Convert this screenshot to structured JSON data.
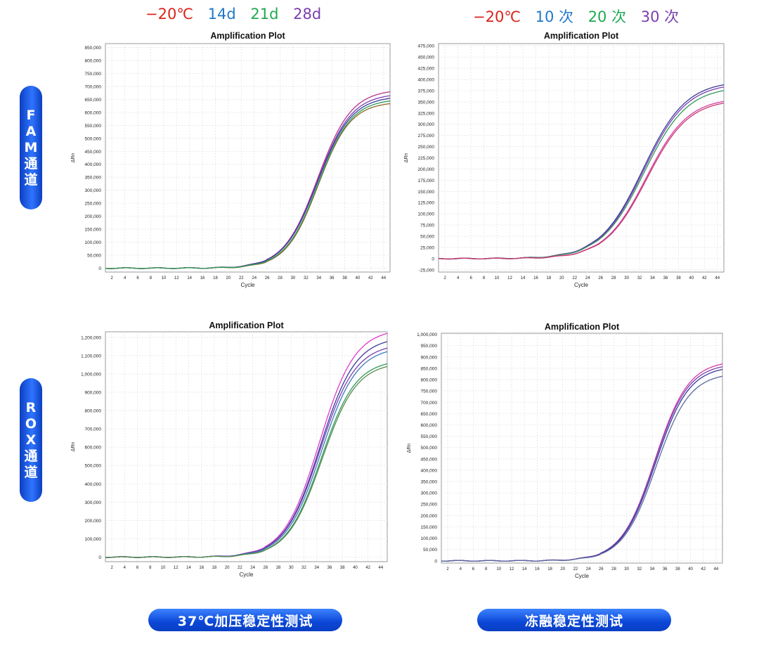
{
  "legend_left": [
    {
      "label": "−20℃",
      "color": "#d9241c"
    },
    {
      "label": "14d",
      "color": "#1f7ac9"
    },
    {
      "label": "21d",
      "color": "#1faa52"
    },
    {
      "label": "28d",
      "color": "#7a3fb0"
    }
  ],
  "legend_right": [
    {
      "label": "−20℃",
      "color": "#d9241c"
    },
    {
      "label": "10 次",
      "color": "#1f7ac9"
    },
    {
      "label": "20 次",
      "color": "#1faa52"
    },
    {
      "label": "30 次",
      "color": "#7a3fb0"
    }
  ],
  "side_labels": {
    "fam": [
      "F",
      "A",
      "M",
      "通",
      "道"
    ],
    "rox": [
      "R",
      "O",
      "X",
      "通",
      "道"
    ]
  },
  "bottom_labels": {
    "left": "37℃加压稳定性测试",
    "right": "冻融稳定性测试"
  },
  "chart_data": [
    {
      "type": "line",
      "title": "Amplification Plot",
      "xlabel": "Cycle",
      "ylabel": "ΔRn",
      "x_ticks": [
        2,
        4,
        6,
        8,
        10,
        12,
        14,
        16,
        18,
        20,
        22,
        24,
        26,
        28,
        30,
        32,
        34,
        36,
        38,
        40,
        42,
        44
      ],
      "xlim": [
        1,
        45
      ],
      "ylim": [
        -15000,
        865000
      ],
      "y_ticks": [
        0,
        50000,
        100000,
        150000,
        200000,
        250000,
        300000,
        350000,
        400000,
        450000,
        500000,
        550000,
        600000,
        650000,
        700000,
        750000,
        800000,
        850000
      ],
      "series": [
        {
          "color": "#b8338a",
          "curve": {
            "top": 675000,
            "mid": 33.8,
            "slope": 0.38
          },
          "plateau": 780000
        },
        {
          "color": "#7a3fb0",
          "curve": {
            "top": 660000,
            "mid": 33.8,
            "slope": 0.38
          },
          "plateau": 760000
        },
        {
          "color": "#3a3a9a",
          "curve": {
            "top": 650000,
            "mid": 33.8,
            "slope": 0.38
          },
          "plateau": 745000
        },
        {
          "color": "#8a6a2a",
          "curve": {
            "top": 630000,
            "mid": 33.9,
            "slope": 0.4
          },
          "plateau": 705000
        },
        {
          "color": "#2e9a58",
          "curve": {
            "top": 640000,
            "mid": 33.9,
            "slope": 0.39
          },
          "plateau": 720000
        }
      ]
    },
    {
      "type": "line",
      "title": "Amplification Plot",
      "xlabel": "Cycle",
      "ylabel": "ΔRn",
      "x_ticks": [
        2,
        4,
        6,
        8,
        10,
        12,
        14,
        16,
        18,
        20,
        22,
        24,
        26,
        28,
        30,
        32,
        34,
        36,
        38,
        40,
        42,
        44
      ],
      "xlim": [
        1,
        45
      ],
      "ylim": [
        -30000,
        480000
      ],
      "y_ticks": [
        -25000,
        0,
        25000,
        50000,
        75000,
        100000,
        125000,
        150000,
        175000,
        200000,
        225000,
        250000,
        275000,
        300000,
        325000,
        350000,
        375000,
        400000,
        425000,
        450000,
        475000
      ],
      "series": [
        {
          "color": "#3a3a9a",
          "curve": {
            "top": 385000,
            "mid": 32.5,
            "slope": 0.3
          },
          "plateau": 450000
        },
        {
          "color": "#7a3fb0",
          "curve": {
            "top": 380000,
            "mid": 32.6,
            "slope": 0.3
          },
          "plateau": 445000
        },
        {
          "color": "#2e9a58",
          "curve": {
            "top": 372000,
            "mid": 32.7,
            "slope": 0.3
          },
          "plateau": 435000
        },
        {
          "color": "#d93aa6",
          "curve": {
            "top": 348000,
            "mid": 33.0,
            "slope": 0.31
          },
          "plateau": 405000
        },
        {
          "color": "#c23b6a",
          "curve": {
            "top": 344000,
            "mid": 33.1,
            "slope": 0.31
          },
          "plateau": 400000
        }
      ]
    },
    {
      "type": "line",
      "title": "Amplification Plot",
      "xlabel": "Cycle",
      "ylabel": "ΔRn",
      "x_ticks": [
        2,
        4,
        6,
        8,
        10,
        12,
        14,
        16,
        18,
        20,
        22,
        24,
        26,
        28,
        30,
        32,
        34,
        36,
        38,
        40,
        42,
        44
      ],
      "xlim": [
        1,
        45
      ],
      "ylim": [
        -25000,
        1230000
      ],
      "y_ticks": [
        0,
        100000,
        200000,
        300000,
        400000,
        500000,
        600000,
        700000,
        800000,
        900000,
        1000000,
        1100000,
        1200000
      ],
      "series": [
        {
          "color": "#e03ad0",
          "curve": {
            "top": 1210000,
            "mid": 34.4,
            "slope": 0.36
          },
          "plateau": 1420000
        },
        {
          "color": "#3a3a9a",
          "curve": {
            "top": 1165000,
            "mid": 34.5,
            "slope": 0.36
          },
          "plateau": 1360000
        },
        {
          "color": "#7a3fb0",
          "curve": {
            "top": 1130000,
            "mid": 34.5,
            "slope": 0.36
          },
          "plateau": 1320000
        },
        {
          "color": "#3a7ab8",
          "curve": {
            "top": 1110000,
            "mid": 34.7,
            "slope": 0.36
          },
          "plateau": 1300000
        },
        {
          "color": "#2e9a58",
          "curve": {
            "top": 1045000,
            "mid": 34.7,
            "slope": 0.37
          },
          "plateau": 1220000
        },
        {
          "color": "#5a8a50",
          "curve": {
            "top": 1030000,
            "mid": 34.8,
            "slope": 0.37
          },
          "plateau": 1200000
        }
      ]
    },
    {
      "type": "line",
      "title": "Amplification Plot",
      "xlabel": "Cycle",
      "ylabel": "ΔRn",
      "x_ticks": [
        2,
        4,
        6,
        8,
        10,
        12,
        14,
        16,
        18,
        20,
        22,
        24,
        26,
        28,
        30,
        32,
        34,
        36,
        38,
        40,
        42,
        44
      ],
      "xlim": [
        1,
        45
      ],
      "ylim": [
        -10000,
        1005000
      ],
      "y_ticks": [
        0,
        50000,
        100000,
        150000,
        200000,
        250000,
        300000,
        350000,
        400000,
        450000,
        500000,
        550000,
        600000,
        650000,
        700000,
        750000,
        800000,
        850000,
        900000,
        950000,
        1000000
      ],
      "series": [
        {
          "color": "#d93aa6",
          "curve": {
            "top": 862000,
            "mid": 34.4,
            "slope": 0.38
          },
          "plateau": 975000
        },
        {
          "color": "#7a3fb0",
          "curve": {
            "top": 850000,
            "mid": 34.4,
            "slope": 0.38
          },
          "plateau": 960000
        },
        {
          "color": "#3a3a9a",
          "curve": {
            "top": 838000,
            "mid": 34.5,
            "slope": 0.38
          },
          "plateau": 945000
        },
        {
          "color": "#5a6aa0",
          "curve": {
            "top": 808000,
            "mid": 34.6,
            "slope": 0.38
          },
          "plateau": 912000
        }
      ]
    }
  ]
}
